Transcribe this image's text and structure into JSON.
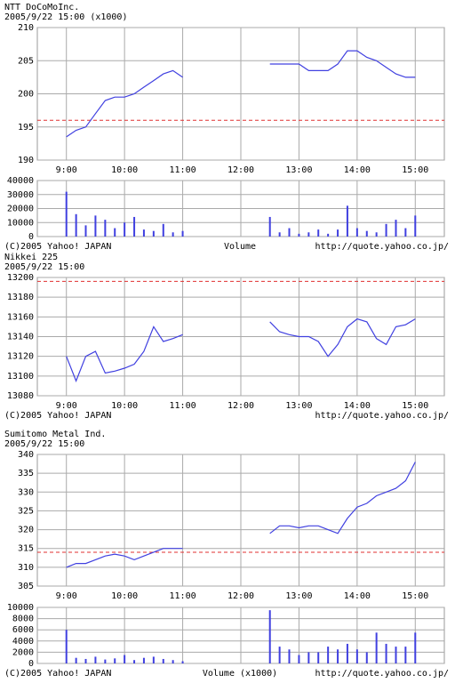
{
  "chart_data": [
    {
      "type": "line",
      "title": "NTT  DoCoMoInc.",
      "subtitle": "2005/9/22 15:00  (x1000)",
      "reference": 196,
      "color": "#4040e0",
      "reference_color": "#e03030",
      "grid": true,
      "xlim": [
        8.5,
        15.5
      ],
      "xticks": [
        {
          "value": 9,
          "label": "9:00"
        },
        {
          "value": 10,
          "label": "10:00"
        },
        {
          "value": 11,
          "label": "11:00"
        },
        {
          "value": 12,
          "label": "12:00"
        },
        {
          "value": 13,
          "label": "13:00"
        },
        {
          "value": 14,
          "label": "14:00"
        },
        {
          "value": 15,
          "label": "15:00"
        }
      ],
      "ylim": [
        190,
        210
      ],
      "yticks": [
        190,
        195,
        200,
        205,
        210
      ],
      "x": [
        9.0,
        9.167,
        9.333,
        9.5,
        9.667,
        9.833,
        10.0,
        10.167,
        10.333,
        10.5,
        10.667,
        10.833,
        11.0,
        12.0,
        12.5,
        12.667,
        12.833,
        13.0,
        13.167,
        13.333,
        13.5,
        13.667,
        13.833,
        14.0,
        14.167,
        14.333,
        14.5,
        14.667,
        14.833,
        15.0
      ],
      "values": [
        193.5,
        194.5,
        195,
        197,
        199,
        199.5,
        199.5,
        200,
        201,
        202,
        203,
        203.5,
        202.5,
        null,
        204.5,
        204.5,
        204.5,
        204.5,
        203.5,
        203.5,
        203.5,
        204.5,
        206.5,
        206.5,
        205.5,
        205,
        204,
        203,
        202.5,
        202.5
      ]
    },
    {
      "type": "bar",
      "title": "Volume",
      "credit": "(C)2005 Yahoo! JAPAN",
      "source": "http://quote.yahoo.co.jp/",
      "color": "#4040e0",
      "grid": true,
      "xlim": [
        8.5,
        15.5
      ],
      "xticks": [
        9,
        10,
        11,
        12,
        13,
        14,
        15
      ],
      "ylim": [
        0,
        40000
      ],
      "yticks": [
        0,
        10000,
        20000,
        30000,
        40000
      ],
      "x": [
        9.0,
        9.167,
        9.333,
        9.5,
        9.667,
        9.833,
        10.0,
        10.167,
        10.333,
        10.5,
        10.667,
        10.833,
        11.0,
        12.5,
        12.667,
        12.833,
        13.0,
        13.167,
        13.333,
        13.5,
        13.667,
        13.833,
        14.0,
        14.167,
        14.333,
        14.5,
        14.667,
        14.833,
        15.0
      ],
      "values": [
        32000,
        16000,
        8000,
        15000,
        12000,
        6000,
        10000,
        14000,
        5000,
        4000,
        9000,
        3000,
        4000,
        14000,
        3000,
        6000,
        2000,
        3000,
        5000,
        2000,
        5000,
        22000,
        6000,
        4000,
        3000,
        9000,
        12000,
        6000,
        15000
      ]
    },
    {
      "type": "line",
      "title": "Nikkei 225",
      "subtitle": "2005/9/22 15:00",
      "credit": "(C)2005 Yahoo! JAPAN",
      "source": "http://quote.yahoo.co.jp/",
      "reference": 13196,
      "color": "#4040e0",
      "reference_color": "#e03030",
      "grid": true,
      "xlim": [
        8.5,
        15.5
      ],
      "xticks": [
        {
          "value": 9,
          "label": "9:00"
        },
        {
          "value": 10,
          "label": "10:00"
        },
        {
          "value": 11,
          "label": "11:00"
        },
        {
          "value": 12,
          "label": "12:00"
        },
        {
          "value": 13,
          "label": "13:00"
        },
        {
          "value": 14,
          "label": "14:00"
        },
        {
          "value": 15,
          "label": "15:00"
        }
      ],
      "ylim": [
        13080,
        13200
      ],
      "yticks": [
        13080,
        13100,
        13120,
        13140,
        13160,
        13180,
        13200
      ],
      "x": [
        9.0,
        9.167,
        9.333,
        9.5,
        9.667,
        9.833,
        10.0,
        10.167,
        10.333,
        10.5,
        10.667,
        10.833,
        11.0,
        12.0,
        12.5,
        12.667,
        12.833,
        13.0,
        13.167,
        13.333,
        13.5,
        13.667,
        13.833,
        14.0,
        14.167,
        14.333,
        14.5,
        14.667,
        14.833,
        15.0
      ],
      "values": [
        13120,
        13095,
        13120,
        13125,
        13103,
        13105,
        13108,
        13112,
        13125,
        13150,
        13135,
        13138,
        13142,
        null,
        13155,
        13145,
        13142,
        13140,
        13140,
        13135,
        13120,
        13132,
        13150,
        13158,
        13155,
        13138,
        13132,
        13150,
        13152,
        13158
      ]
    },
    {
      "type": "line",
      "title": "Sumitomo  Metal  Ind.",
      "subtitle": "2005/9/22 15:00",
      "reference": 314,
      "color": "#4040e0",
      "reference_color": "#e03030",
      "grid": true,
      "xlim": [
        8.5,
        15.5
      ],
      "xticks": [
        {
          "value": 9,
          "label": "9:00"
        },
        {
          "value": 10,
          "label": "10:00"
        },
        {
          "value": 11,
          "label": "11:00"
        },
        {
          "value": 12,
          "label": "12:00"
        },
        {
          "value": 13,
          "label": "13:00"
        },
        {
          "value": 14,
          "label": "14:00"
        },
        {
          "value": 15,
          "label": "15:00"
        }
      ],
      "ylim": [
        305,
        340
      ],
      "yticks": [
        305,
        310,
        315,
        320,
        325,
        330,
        335,
        340
      ],
      "x": [
        9.0,
        9.167,
        9.333,
        9.5,
        9.667,
        9.833,
        10.0,
        10.167,
        10.333,
        10.5,
        10.667,
        10.833,
        11.0,
        12.0,
        12.5,
        12.667,
        12.833,
        13.0,
        13.167,
        13.333,
        13.5,
        13.667,
        13.833,
        14.0,
        14.167,
        14.333,
        14.5,
        14.667,
        14.833,
        15.0
      ],
      "values": [
        310,
        311,
        311,
        312,
        313,
        313.5,
        313,
        312,
        313,
        314,
        315,
        315,
        315,
        null,
        319,
        321,
        321,
        320.5,
        321,
        321,
        320,
        319,
        323,
        326,
        327,
        329,
        330,
        331,
        333,
        338
      ]
    },
    {
      "type": "bar",
      "title": "Volume (x1000)",
      "credit": "(C)2005 Yahoo! JAPAN",
      "source": "http://quote.yahoo.co.jp/",
      "color": "#4040e0",
      "grid": true,
      "xlim": [
        8.5,
        15.5
      ],
      "xticks": [
        9,
        10,
        11,
        12,
        13,
        14,
        15
      ],
      "ylim": [
        0,
        10000
      ],
      "yticks": [
        0,
        2000,
        4000,
        6000,
        8000,
        10000
      ],
      "x": [
        9.0,
        9.167,
        9.333,
        9.5,
        9.667,
        9.833,
        10.0,
        10.167,
        10.333,
        10.5,
        10.667,
        10.833,
        11.0,
        12.5,
        12.667,
        12.833,
        13.0,
        13.167,
        13.333,
        13.5,
        13.667,
        13.833,
        14.0,
        14.167,
        14.333,
        14.5,
        14.667,
        14.833,
        15.0
      ],
      "values": [
        6000,
        1000,
        800,
        1200,
        700,
        900,
        1500,
        600,
        1000,
        1200,
        800,
        600,
        400,
        9500,
        3000,
        2500,
        1500,
        2000,
        2000,
        3000,
        2500,
        3500,
        2500,
        2000,
        5500,
        3500,
        3000,
        3000,
        5500
      ]
    }
  ]
}
